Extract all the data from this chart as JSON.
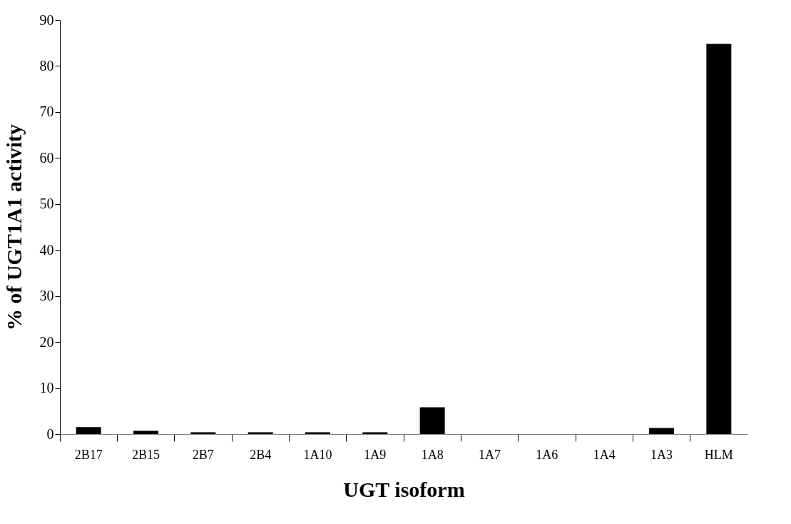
{
  "chart_data": {
    "type": "bar",
    "xlabel": "UGT isoform",
    "ylabel": "% of UGT1A1 activity",
    "categories": [
      "2B17",
      "2B15",
      "2B7",
      "2B4",
      "1A10",
      "1A9",
      "1A8",
      "1A7",
      "1A6",
      "1A4",
      "1A3",
      "HLM"
    ],
    "values": [
      1.5,
      0.7,
      0.4,
      0.4,
      0.4,
      0.4,
      5.8,
      0,
      0,
      0,
      1.3,
      84.8
    ],
    "color": "#000000",
    "ylim": [
      0,
      90
    ],
    "yticks": [
      0,
      10,
      20,
      30,
      40,
      50,
      60,
      70,
      80,
      90
    ],
    "grid": false
  }
}
